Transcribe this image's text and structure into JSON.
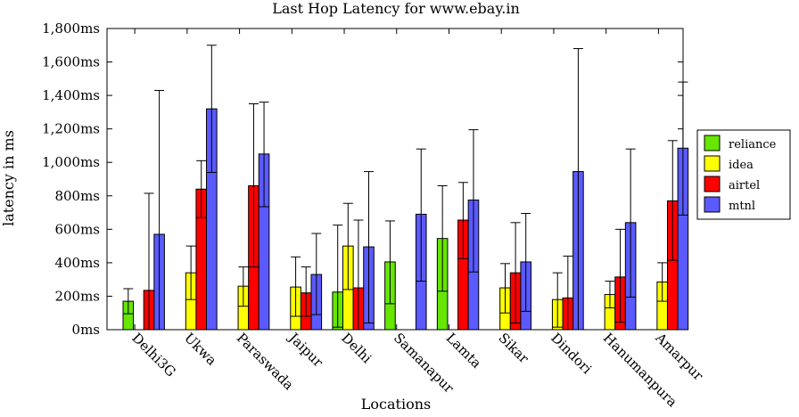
{
  "chart_data": {
    "type": "bar",
    "title": "Last Hop Latency for www.ebay.in",
    "xlabel": "Locations",
    "ylabel": "latency in ms",
    "ylim": [
      0,
      1800
    ],
    "yticks": [
      "0ms",
      "200ms",
      "400ms",
      "600ms",
      "800ms",
      "1,000ms",
      "1,200ms",
      "1,400ms",
      "1,600ms",
      "1,800ms"
    ],
    "ytick_values": [
      0,
      200,
      400,
      600,
      800,
      1000,
      1200,
      1400,
      1600,
      1800
    ],
    "grid": false,
    "legend_position": "right",
    "categories": [
      "Delhi3G",
      "Ukwa",
      "Paraswada",
      "Jaipur",
      "Delhi",
      "Samanapur",
      "Lamta",
      "Sikar",
      "Dindori",
      "Hanumanpura",
      "Amarpur"
    ],
    "series": [
      {
        "name": "reliance",
        "color": "#66e600",
        "values": [
          170,
          null,
          null,
          null,
          225,
          405,
          545,
          null,
          null,
          null,
          null
        ],
        "err_low": [
          95,
          null,
          null,
          null,
          15,
          155,
          230,
          null,
          null,
          null,
          null
        ],
        "err_high": [
          245,
          null,
          null,
          null,
          625,
          650,
          860,
          null,
          null,
          null,
          null
        ]
      },
      {
        "name": "idea",
        "color": "#ffff00",
        "values": [
          null,
          340,
          260,
          255,
          500,
          null,
          null,
          250,
          180,
          210,
          285
        ],
        "err_low": [
          null,
          180,
          140,
          80,
          240,
          null,
          null,
          100,
          15,
          130,
          170
        ],
        "err_high": [
          null,
          500,
          375,
          435,
          755,
          null,
          null,
          395,
          340,
          290,
          400
        ]
      },
      {
        "name": "airtel",
        "color": "#ff0000",
        "values": [
          235,
          840,
          860,
          220,
          250,
          0,
          655,
          340,
          190,
          315,
          770
        ],
        "err_low": [
          0,
          670,
          375,
          80,
          0,
          0,
          425,
          40,
          0,
          45,
          415
        ],
        "err_high": [
          815,
          1010,
          1350,
          375,
          655,
          0,
          880,
          640,
          440,
          600,
          1130
        ]
      },
      {
        "name": "mtnl",
        "color": "#5a5aff",
        "values": [
          570,
          1320,
          1050,
          330,
          495,
          690,
          775,
          405,
          945,
          640,
          1085
        ],
        "err_low": [
          0,
          940,
          735,
          90,
          40,
          290,
          345,
          110,
          0,
          195,
          685
        ],
        "err_high": [
          1430,
          1700,
          1360,
          575,
          945,
          1080,
          1195,
          695,
          1680,
          1080,
          1480
        ]
      }
    ]
  }
}
